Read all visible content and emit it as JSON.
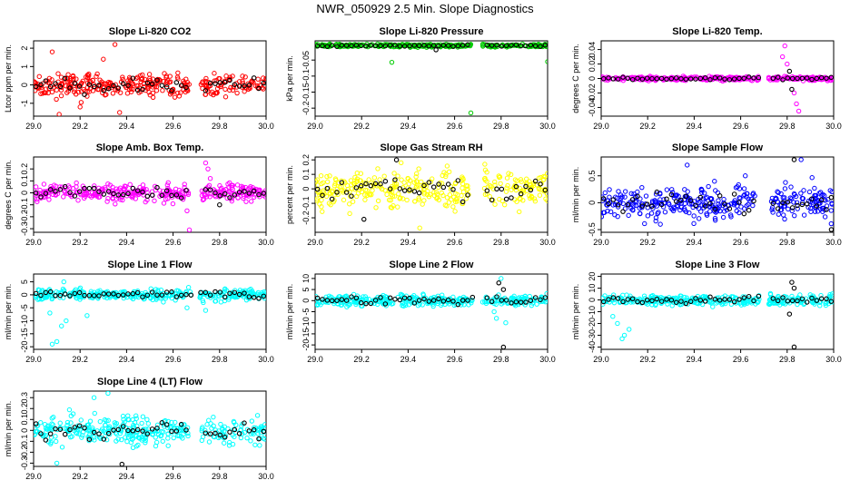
{
  "figure_title": "NWR_050929  2.5 Min. Slope Diagnostics",
  "chart_data": [
    {
      "type": "scatter",
      "title": "Slope Li-820 CO2",
      "ylabel": "Ltcor ppm per min.",
      "xlim": [
        29.0,
        30.0
      ],
      "ylim": [
        -1.7,
        2.4
      ],
      "yticks": [
        -1,
        0,
        1,
        2
      ],
      "xticks": [
        "29.0",
        "29.2",
        "29.4",
        "29.6",
        "29.8",
        "30.0"
      ],
      "gap": [
        29.67,
        29.72
      ],
      "color": "#ff0000",
      "black_color": "#000000",
      "center": 0.0,
      "spread": 0.45,
      "outliers": [
        [
          29.08,
          1.8
        ],
        [
          29.35,
          2.2
        ],
        [
          29.11,
          -1.6
        ],
        [
          29.37,
          -1.5
        ],
        [
          29.3,
          1.4
        ],
        [
          29.2,
          -1.2
        ]
      ],
      "black_outliers": []
    },
    {
      "type": "scatter",
      "title": "Slope Li-820 Pressure",
      "ylabel": "kPa per min.",
      "xlim": [
        29.0,
        30.0
      ],
      "ylim": [
        -0.225,
        0.01
      ],
      "yticks": [
        -0.2,
        -0.15,
        -0.1,
        -0.05
      ],
      "xticks": [
        "29.0",
        "29.2",
        "29.4",
        "29.6",
        "29.8",
        "30.0"
      ],
      "gap": [
        29.67,
        29.72
      ],
      "color": "#00cc00",
      "black_color": "#000000",
      "center": -0.005,
      "spread": 0.003,
      "outliers": [
        [
          29.33,
          -0.057
        ],
        [
          29.67,
          -0.215
        ],
        [
          30.0,
          -0.055
        ]
      ],
      "black_outliers": [
        [
          29.52,
          -0.018
        ]
      ]
    },
    {
      "type": "scatter",
      "title": "Slope Li-820 Temp.",
      "ylabel": "degrees C per min.",
      "xlim": [
        29.0,
        30.0
      ],
      "ylim": [
        -0.052,
        0.052
      ],
      "yticks": [
        -0.04,
        -0.02,
        0,
        0.02,
        0.04
      ],
      "xticks": [
        "29.0",
        "29.2",
        "29.4",
        "29.6",
        "29.8",
        "30.0"
      ],
      "gap": [
        29.68,
        29.72
      ],
      "color": "#ff00ff",
      "black_color": "#000000",
      "center": 0.0,
      "spread": 0.002,
      "outliers": [
        [
          29.78,
          0.03
        ],
        [
          29.79,
          0.045
        ],
        [
          29.8,
          0.02
        ],
        [
          29.84,
          -0.035
        ],
        [
          29.85,
          -0.045
        ],
        [
          29.83,
          -0.02
        ]
      ],
      "black_outliers": [
        [
          29.82,
          -0.015
        ],
        [
          29.81,
          0.01
        ]
      ]
    },
    {
      "type": "scatter",
      "title": "Slope Amb. Box Temp.",
      "ylabel": "degrees C per min.",
      "xlim": [
        29.0,
        30.0
      ],
      "ylim": [
        -0.33,
        0.3
      ],
      "yticks": [
        -0.3,
        -0.2,
        -0.1,
        0,
        0.1,
        0.2
      ],
      "xticks": [
        "29.0",
        "29.2",
        "29.4",
        "29.6",
        "29.8",
        "30.0"
      ],
      "gap": [
        29.67,
        29.72
      ],
      "color": "#ff00ff",
      "black_color": "#000000",
      "center": 0.0,
      "spread": 0.05,
      "outliers": [
        [
          29.67,
          -0.31
        ],
        [
          29.74,
          0.25
        ],
        [
          29.75,
          0.2
        ],
        [
          29.76,
          0.12
        ],
        [
          29.66,
          -0.15
        ]
      ],
      "black_outliers": [
        [
          29.8,
          -0.1
        ]
      ]
    },
    {
      "type": "scatter",
      "title": "Slope Gas Stream RH",
      "ylabel": "percent per min.",
      "xlim": [
        29.0,
        30.0
      ],
      "ylim": [
        -0.3,
        0.22
      ],
      "yticks": [
        -0.2,
        -0.1,
        0,
        0.1,
        0.2
      ],
      "xticks": [
        "29.0",
        "29.2",
        "29.4",
        "29.6",
        "29.8",
        "30.0"
      ],
      "gap": [
        29.67,
        29.72
      ],
      "color": "#ffff00",
      "black_color": "#000000",
      "center": 0.0,
      "spread": 0.09,
      "outliers": [
        [
          29.37,
          0.18
        ],
        [
          29.73,
          0.17
        ],
        [
          29.45,
          -0.27
        ]
      ],
      "black_outliers": [
        [
          29.35,
          0.2
        ],
        [
          29.21,
          -0.21
        ]
      ]
    },
    {
      "type": "scatter",
      "title": "Slope Sample Flow",
      "ylabel": "ml/min per min.",
      "xlim": [
        29.0,
        30.0
      ],
      "ylim": [
        -0.55,
        0.85
      ],
      "yticks": [
        -0.5,
        0,
        0.5
      ],
      "xticks": [
        "29.0",
        "29.2",
        "29.4",
        "29.6",
        "29.8",
        "30.0"
      ],
      "gap": [
        29.67,
        29.73
      ],
      "color": "#0000ff",
      "black_color": "#000000",
      "center": 0.0,
      "spread": 0.22,
      "outliers": [
        [
          29.37,
          0.7
        ],
        [
          29.86,
          0.8
        ],
        [
          29.62,
          0.5
        ]
      ],
      "black_outliers": [
        [
          29.83,
          0.8
        ],
        [
          29.99,
          -0.5
        ]
      ]
    },
    {
      "type": "scatter",
      "title": "Slope Line 1 Flow",
      "ylabel": "ml/min per min.",
      "xlim": [
        29.0,
        30.0
      ],
      "ylim": [
        -21,
        8
      ],
      "yticks": [
        -20,
        -15,
        -10,
        -5,
        0,
        5
      ],
      "xticks": [
        "29.0",
        "29.2",
        "29.4",
        "29.6",
        "29.8",
        "30.0"
      ],
      "gap": [
        29.68,
        29.71
      ],
      "color": "#00ffff",
      "black_color": "#000000",
      "center": 0.0,
      "spread": 1.5,
      "outliers": [
        [
          29.08,
          -19
        ],
        [
          29.1,
          -18
        ],
        [
          29.12,
          -12
        ],
        [
          29.14,
          -10
        ],
        [
          29.07,
          -7
        ],
        [
          29.13,
          5
        ],
        [
          29.23,
          -8
        ],
        [
          29.74,
          -6
        ],
        [
          29.73,
          -3
        ],
        [
          29.66,
          -5
        ]
      ],
      "black_outliers": []
    },
    {
      "type": "scatter",
      "title": "Slope Line 2 Flow",
      "ylabel": "ml/min per min.",
      "xlim": [
        29.0,
        30.0
      ],
      "ylim": [
        -22,
        12
      ],
      "yticks": [
        -20,
        -15,
        -10,
        -5,
        0,
        5,
        10
      ],
      "xticks": [
        "29.0",
        "29.2",
        "29.4",
        "29.6",
        "29.8",
        "30.0"
      ],
      "gap": [
        29.68,
        29.72
      ],
      "color": "#00ffff",
      "black_color": "#000000",
      "center": 0.0,
      "spread": 1.8,
      "outliers": [
        [
          29.8,
          10
        ],
        [
          29.78,
          -8
        ],
        [
          29.82,
          -10
        ],
        [
          29.77,
          -5
        ]
      ],
      "black_outliers": [
        [
          29.81,
          -21
        ],
        [
          29.79,
          8
        ],
        [
          29.81,
          5
        ]
      ]
    },
    {
      "type": "scatter",
      "title": "Slope Line 3 Flow",
      "ylabel": "ml/min per min.",
      "xlim": [
        29.0,
        30.0
      ],
      "ylim": [
        -42,
        22
      ],
      "yticks": [
        -40,
        -30,
        -20,
        -10,
        0,
        10,
        20
      ],
      "xticks": [
        "29.0",
        "29.2",
        "29.4",
        "29.6",
        "29.8",
        "30.0"
      ],
      "gap": [
        29.68,
        29.72
      ],
      "color": "#00ffff",
      "black_color": "#000000",
      "center": 0.0,
      "spread": 3.0,
      "outliers": [
        [
          29.09,
          -33
        ],
        [
          29.1,
          -30
        ],
        [
          29.07,
          -20
        ],
        [
          29.12,
          -25
        ],
        [
          29.05,
          -14
        ]
      ],
      "black_outliers": [
        [
          29.83,
          -40
        ],
        [
          29.82,
          15
        ],
        [
          29.83,
          10
        ],
        [
          29.81,
          -12
        ]
      ]
    },
    {
      "type": "scatter",
      "title": "Slope Line 4 (LT) Flow",
      "ylabel": "ml/min per min.",
      "xlim": [
        29.0,
        30.0
      ],
      "ylim": [
        -0.33,
        0.36
      ],
      "yticks": [
        -0.3,
        -0.2,
        -0.1,
        0,
        0.1,
        0.2,
        0.3
      ],
      "xticks": [
        "29.0",
        "29.2",
        "29.4",
        "29.6",
        "29.8",
        "30.0"
      ],
      "gap": [
        29.67,
        29.72
      ],
      "color": "#00ffff",
      "black_color": "#000000",
      "center": 0.0,
      "spread": 0.09,
      "outliers": [
        [
          29.32,
          0.34
        ],
        [
          29.1,
          -0.3
        ],
        [
          29.26,
          0.3
        ]
      ],
      "black_outliers": [
        [
          29.38,
          -0.31
        ]
      ]
    }
  ]
}
